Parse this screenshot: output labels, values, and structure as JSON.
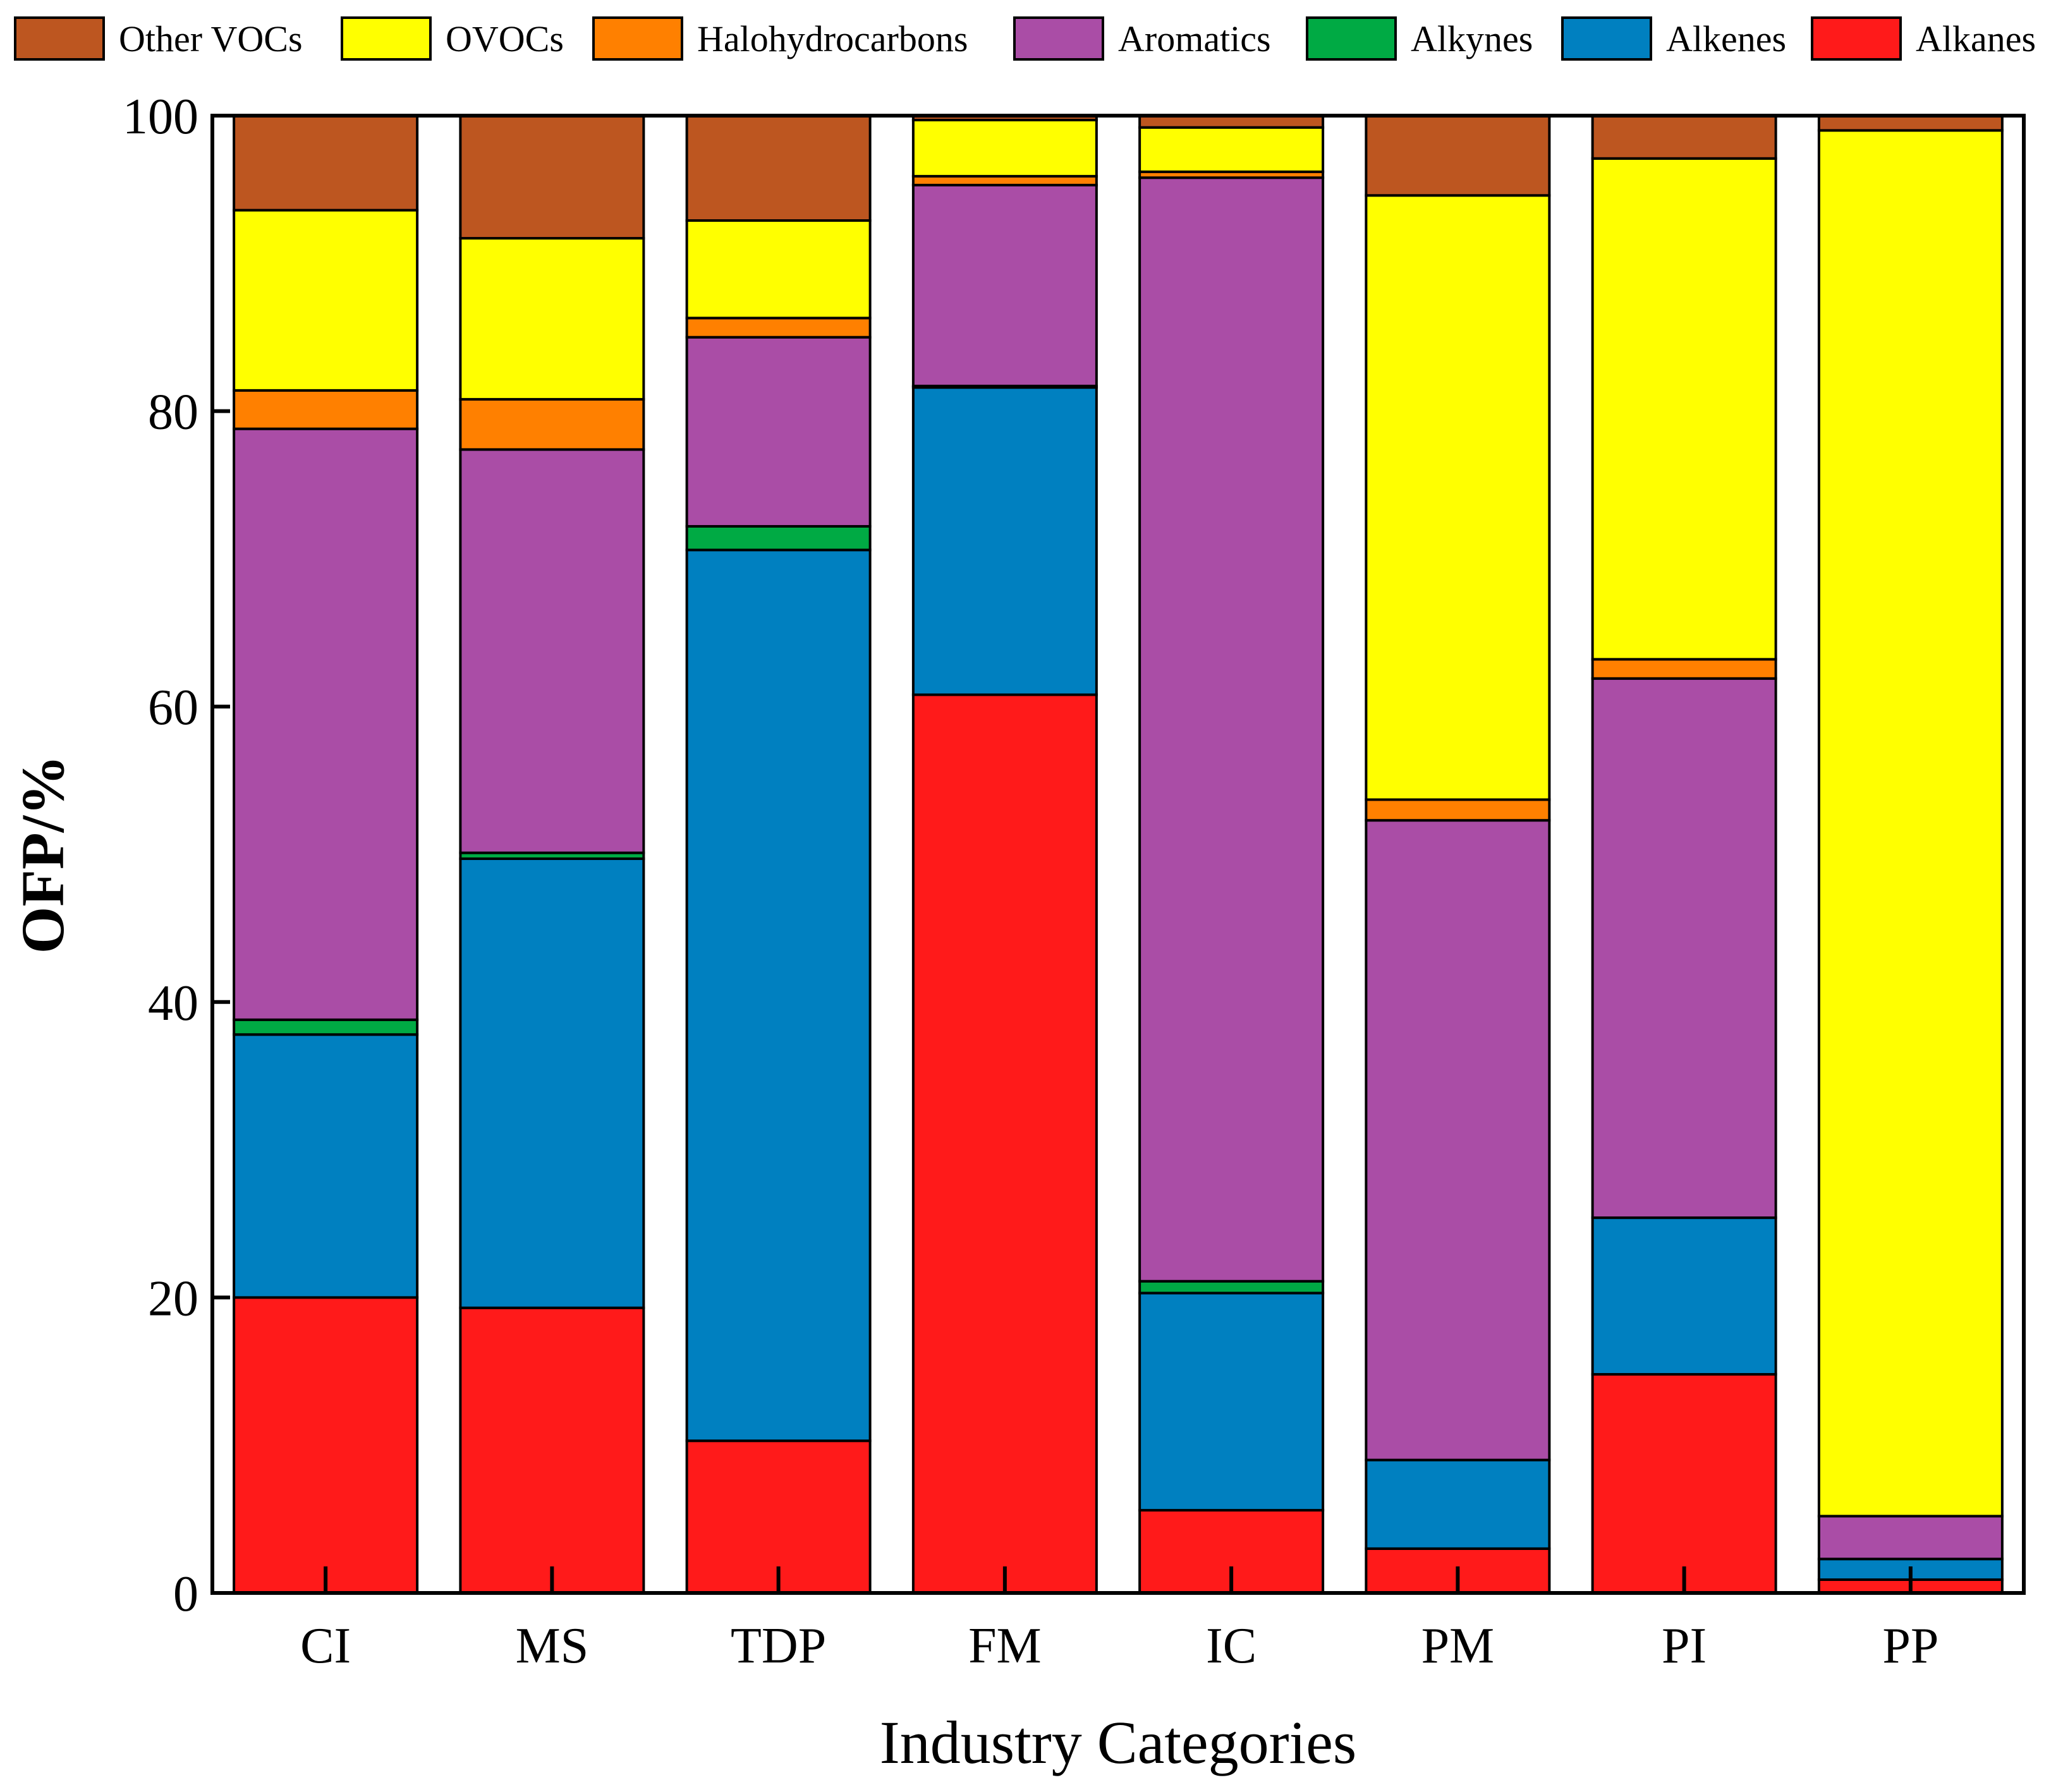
{
  "chart_data": {
    "type": "bar",
    "stacked": true,
    "title": "",
    "xlabel": "Industry Categories",
    "ylabel": "OFP/%",
    "ylim": [
      0,
      100
    ],
    "yticks": [
      "0",
      "20",
      "40",
      "60",
      "80",
      "100"
    ],
    "grid": false,
    "legend_position": "top",
    "categories": [
      "CI",
      "MS",
      "TDP",
      "FM",
      "IC",
      "PM",
      "PI",
      "PP"
    ],
    "series": [
      {
        "name": "Alkanes",
        "color": "#FF1A1A",
        "values": [
          20.0,
          19.3,
          10.3,
          60.8,
          5.6,
          3.0,
          14.8,
          0.9
        ]
      },
      {
        "name": "Alkenes",
        "color": "#0080C0",
        "values": [
          17.8,
          30.4,
          60.3,
          20.8,
          14.7,
          6.0,
          10.6,
          1.4
        ]
      },
      {
        "name": "Alkynes",
        "color": "#00AA44",
        "values": [
          1.0,
          0.4,
          1.6,
          0.1,
          0.8,
          0.0,
          0.0,
          0.0
        ]
      },
      {
        "name": "Aromatics",
        "color": "#AA4DA6",
        "values": [
          40.0,
          27.3,
          12.8,
          13.6,
          74.7,
          43.3,
          36.5,
          2.9
        ]
      },
      {
        "name": "Halohydrocarbons",
        "color": "#FF8000",
        "values": [
          2.6,
          3.4,
          1.3,
          0.6,
          0.4,
          1.4,
          1.3,
          0.0
        ]
      },
      {
        "name": "OVOCs",
        "color": "#FFFF00",
        "values": [
          12.2,
          10.9,
          6.6,
          3.8,
          3.0,
          40.9,
          33.9,
          93.8
        ]
      },
      {
        "name": "Other VOCs",
        "color": "#BD5620",
        "values": [
          6.4,
          8.3,
          7.1,
          0.3,
          0.8,
          5.4,
          2.9,
          1.0
        ]
      }
    ],
    "legend_order": [
      "Other VOCs",
      "OVOCs",
      "Halohydrocarbons",
      "Aromatics",
      "Alkynes",
      "Alkenes",
      "Alkanes"
    ]
  }
}
